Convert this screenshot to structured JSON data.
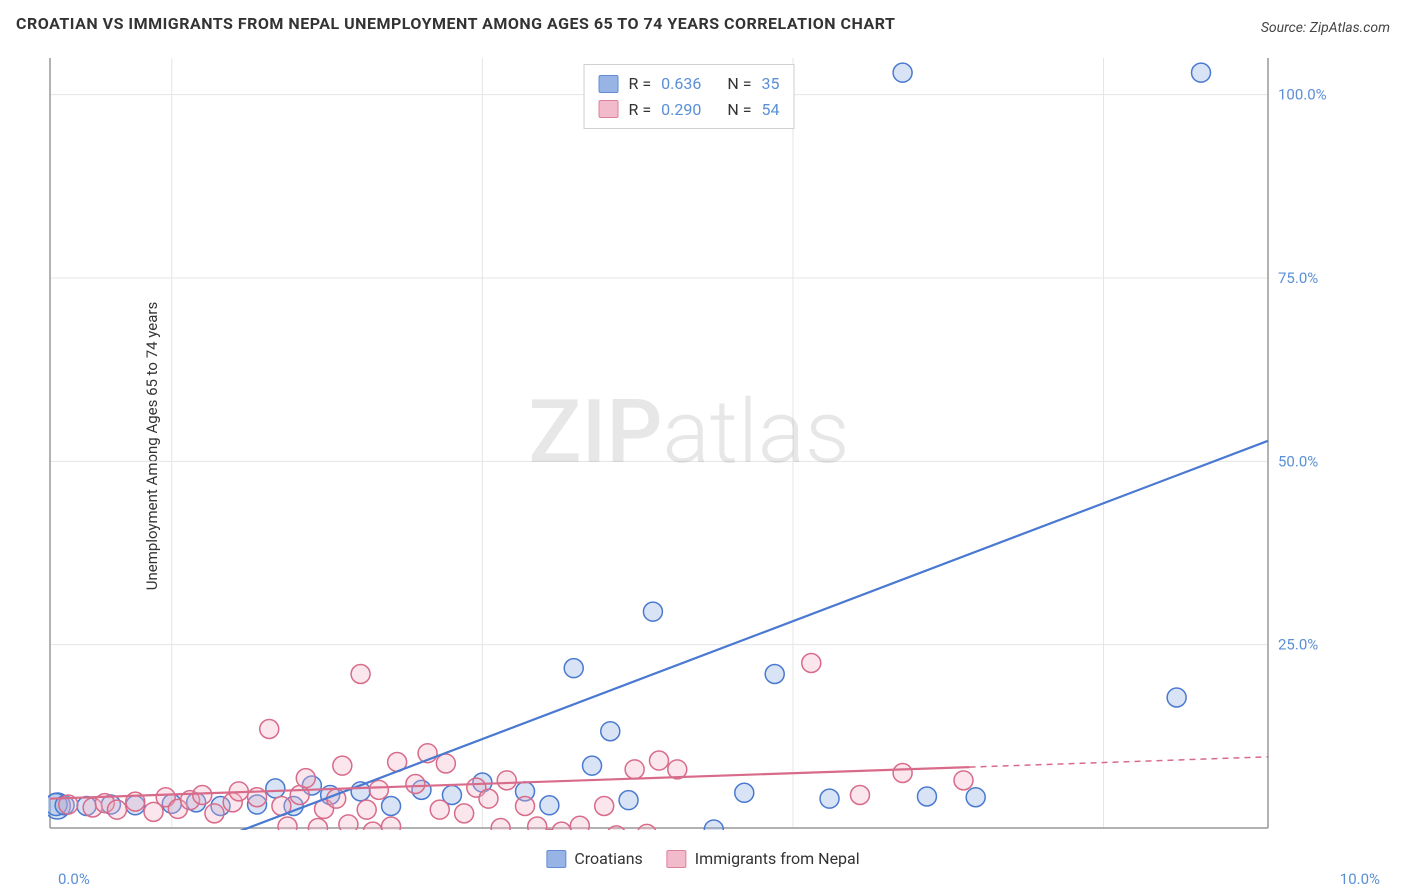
{
  "title": "CROATIAN VS IMMIGRANTS FROM NEPAL UNEMPLOYMENT AMONG AGES 65 TO 74 YEARS CORRELATION CHART",
  "title_fontsize": 16,
  "source": "Source: ZipAtlas.com",
  "source_fontsize": 14,
  "ylabel": "Unemployment Among Ages 65 to 74 years",
  "ylabel_fontsize": 15,
  "watermark_zip": "ZIP",
  "watermark_atlas": "atlas",
  "watermark_fontsize": 88,
  "chart": {
    "type": "scatter",
    "background_color": "#ffffff",
    "grid_color": "#e5e5e5",
    "axis_color": "#999999",
    "xlim": [
      0,
      10
    ],
    "ylim": [
      0,
      105
    ],
    "xtick_labels": [
      "0.0%",
      "10.0%"
    ],
    "yticks": [
      25,
      50,
      75,
      100
    ],
    "ytick_labels": [
      "25.0%",
      "50.0%",
      "75.0%",
      "100.0%"
    ],
    "xgrid_positions": [
      1.0,
      3.55,
      6.1,
      8.65
    ],
    "tick_fontsize": 15,
    "marker_radius": 9.5,
    "marker_stroke_width": 1.5,
    "marker_fill_opacity": 0.32,
    "trend_line_width": 2.2,
    "series": [
      {
        "id": "croatians",
        "label": "Croatians",
        "color_stroke": "#4a79d1",
        "color_fill": "#87a8e0",
        "R": "0.636",
        "N": "35",
        "trend": {
          "x1": 1.15,
          "y1": -3.0,
          "x2": 10.0,
          "y2": 52.8
        },
        "points": [
          {
            "x": 0.06,
            "y": 3.0,
            "r": 13
          },
          {
            "x": 0.05,
            "y": 3.2,
            "r": 11
          },
          {
            "x": 0.12,
            "y": 3.1
          },
          {
            "x": 0.3,
            "y": 3.0
          },
          {
            "x": 0.5,
            "y": 3.2
          },
          {
            "x": 0.7,
            "y": 3.1
          },
          {
            "x": 1.0,
            "y": 3.3
          },
          {
            "x": 1.2,
            "y": 3.5
          },
          {
            "x": 1.4,
            "y": 3.0
          },
          {
            "x": 1.7,
            "y": 3.2
          },
          {
            "x": 1.85,
            "y": 5.4
          },
          {
            "x": 2.0,
            "y": 3.0
          },
          {
            "x": 2.15,
            "y": 5.8
          },
          {
            "x": 2.3,
            "y": 4.5
          },
          {
            "x": 2.55,
            "y": 5.0
          },
          {
            "x": 2.8,
            "y": 3.0
          },
          {
            "x": 3.05,
            "y": 5.2
          },
          {
            "x": 3.3,
            "y": 4.5
          },
          {
            "x": 3.55,
            "y": 6.2
          },
          {
            "x": 3.9,
            "y": 5.0
          },
          {
            "x": 4.1,
            "y": 3.1
          },
          {
            "x": 4.3,
            "y": 21.8
          },
          {
            "x": 4.45,
            "y": 8.5
          },
          {
            "x": 4.6,
            "y": 13.2
          },
          {
            "x": 4.75,
            "y": 3.8
          },
          {
            "x": 4.95,
            "y": 29.5
          },
          {
            "x": 5.45,
            "y": -0.2
          },
          {
            "x": 5.7,
            "y": 4.8
          },
          {
            "x": 5.95,
            "y": 21.0
          },
          {
            "x": 6.4,
            "y": 4.0
          },
          {
            "x": 7.0,
            "y": 103.0
          },
          {
            "x": 7.2,
            "y": 4.3
          },
          {
            "x": 7.6,
            "y": 4.2
          },
          {
            "x": 9.25,
            "y": 17.8
          },
          {
            "x": 9.45,
            "y": 103.0
          }
        ]
      },
      {
        "id": "nepal",
        "label": "Immigrants from Nepal",
        "color_stroke": "#d86b8a",
        "color_fill": "#f0b0c3",
        "R": "0.290",
        "N": "54",
        "trend": {
          "x1": 0.0,
          "y1": 4.0,
          "x2": 10.0,
          "y2": 9.7,
          "solid_until_x": 7.55
        },
        "points": [
          {
            "x": 0.15,
            "y": 3.2
          },
          {
            "x": 0.35,
            "y": 2.8
          },
          {
            "x": 0.45,
            "y": 3.4
          },
          {
            "x": 0.55,
            "y": 2.5
          },
          {
            "x": 0.7,
            "y": 3.6
          },
          {
            "x": 0.85,
            "y": 2.2
          },
          {
            "x": 0.95,
            "y": 4.2
          },
          {
            "x": 1.05,
            "y": 2.6
          },
          {
            "x": 1.15,
            "y": 3.8
          },
          {
            "x": 1.25,
            "y": 4.5
          },
          {
            "x": 1.35,
            "y": 2.0
          },
          {
            "x": 1.5,
            "y": 3.5
          },
          {
            "x": 1.55,
            "y": 5.0
          },
          {
            "x": 1.7,
            "y": 4.2
          },
          {
            "x": 1.8,
            "y": 13.5
          },
          {
            "x": 1.9,
            "y": 3.0
          },
          {
            "x": 1.95,
            "y": 0.2
          },
          {
            "x": 2.05,
            "y": 4.5
          },
          {
            "x": 2.1,
            "y": 6.8
          },
          {
            "x": 2.2,
            "y": 0.0
          },
          {
            "x": 2.25,
            "y": 2.6
          },
          {
            "x": 2.35,
            "y": 4.0
          },
          {
            "x": 2.4,
            "y": 8.5
          },
          {
            "x": 2.45,
            "y": 0.5
          },
          {
            "x": 2.55,
            "y": 21.0
          },
          {
            "x": 2.6,
            "y": 2.5
          },
          {
            "x": 2.65,
            "y": -0.5
          },
          {
            "x": 2.7,
            "y": 5.2
          },
          {
            "x": 2.8,
            "y": 0.2
          },
          {
            "x": 2.85,
            "y": 9.0
          },
          {
            "x": 3.0,
            "y": 6.0
          },
          {
            "x": 3.1,
            "y": 10.2
          },
          {
            "x": 3.2,
            "y": 2.5
          },
          {
            "x": 3.25,
            "y": 8.8
          },
          {
            "x": 3.4,
            "y": 2.0
          },
          {
            "x": 3.5,
            "y": 5.5
          },
          {
            "x": 3.6,
            "y": 4.0
          },
          {
            "x": 3.7,
            "y": 0.0
          },
          {
            "x": 3.75,
            "y": 6.5
          },
          {
            "x": 3.9,
            "y": 3.0
          },
          {
            "x": 4.0,
            "y": 0.2
          },
          {
            "x": 4.1,
            "y": -1.5
          },
          {
            "x": 4.2,
            "y": -0.5
          },
          {
            "x": 4.35,
            "y": 0.3
          },
          {
            "x": 4.55,
            "y": 3.0
          },
          {
            "x": 4.65,
            "y": -1.0
          },
          {
            "x": 4.8,
            "y": 8.0
          },
          {
            "x": 4.9,
            "y": -0.8
          },
          {
            "x": 5.0,
            "y": 9.2
          },
          {
            "x": 5.15,
            "y": 8.0
          },
          {
            "x": 6.25,
            "y": 22.5
          },
          {
            "x": 6.65,
            "y": 4.5
          },
          {
            "x": 7.0,
            "y": 7.5
          },
          {
            "x": 7.5,
            "y": 6.5
          }
        ]
      }
    ]
  },
  "stats_box": {
    "R_label": "R =",
    "N_label": "N =",
    "fontsize": 16
  },
  "legend_fontsize": 16
}
